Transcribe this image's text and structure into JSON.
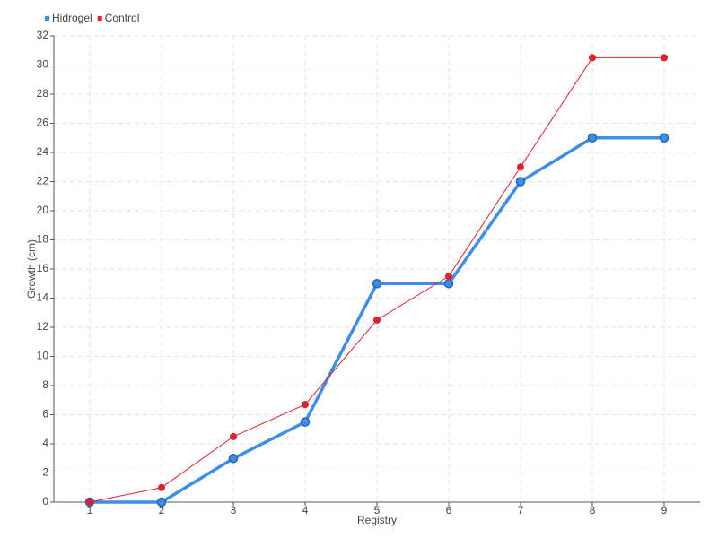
{
  "chart_data": {
    "type": "line",
    "x_label": "Registry",
    "y_label": "Growth (cm)",
    "x": [
      1,
      2,
      3,
      4,
      5,
      6,
      7,
      8,
      9
    ],
    "xlim": [
      0.5,
      9.5
    ],
    "xticks": [
      1,
      2,
      3,
      4,
      5,
      6,
      7,
      8,
      9
    ],
    "ylim": [
      0,
      32
    ],
    "yticks": [
      0,
      2,
      4,
      6,
      8,
      10,
      12,
      14,
      16,
      18,
      20,
      22,
      24,
      26,
      28,
      30,
      32
    ],
    "grid": true,
    "legend": "top-left",
    "series": [
      {
        "name": "Hidrogel",
        "color": "#3d8ee8",
        "values": [
          0,
          0,
          3,
          5.5,
          15,
          15,
          22,
          25,
          25
        ]
      },
      {
        "name": "Control",
        "color": "#e0202a",
        "values": [
          0,
          1,
          4.5,
          6.7,
          12.5,
          15.5,
          23,
          30.5,
          30.5
        ]
      }
    ]
  }
}
